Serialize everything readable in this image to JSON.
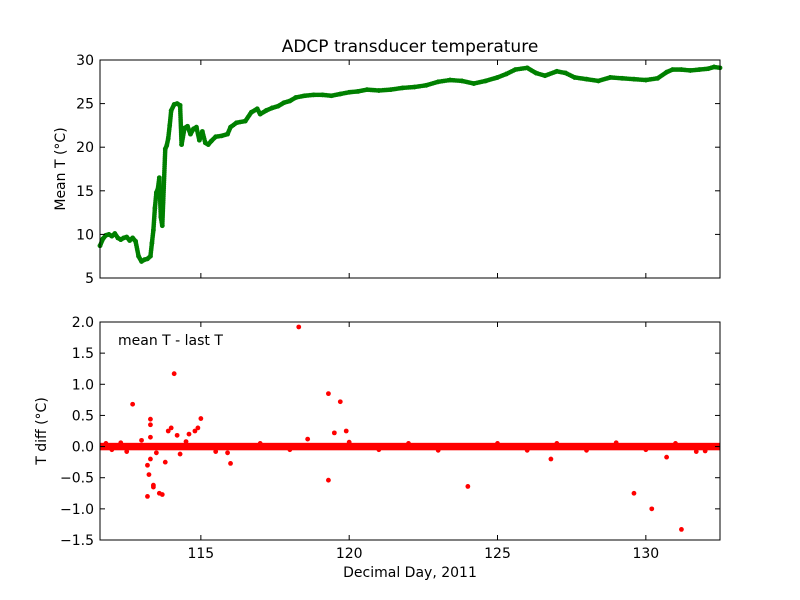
{
  "chart_data": [
    {
      "type": "scatter",
      "title": "ADCP transducer temperature",
      "xlabel": "",
      "ylabel": "Mean T (°C)",
      "xlim": [
        111.6,
        132.5
      ],
      "ylim": [
        5,
        30
      ],
      "yticks": [
        5,
        10,
        15,
        20,
        25,
        30
      ],
      "xticks": [
        115,
        120,
        125,
        130
      ],
      "show_xtick_labels": false,
      "grid": false,
      "series_color": "#008000",
      "series": [
        {
          "points": [
            [
              111.6,
              8.7
            ],
            [
              111.7,
              9.5
            ],
            [
              111.8,
              9.9
            ],
            [
              111.9,
              10.0
            ],
            [
              112.0,
              9.8
            ],
            [
              112.1,
              10.1
            ],
            [
              112.2,
              9.6
            ],
            [
              112.3,
              9.4
            ],
            [
              112.4,
              9.6
            ],
            [
              112.5,
              9.7
            ],
            [
              112.6,
              9.3
            ],
            [
              112.7,
              9.6
            ],
            [
              112.8,
              9.2
            ],
            [
              112.9,
              7.5
            ],
            [
              113.0,
              6.9
            ],
            [
              113.1,
              7.1
            ],
            [
              113.2,
              7.2
            ],
            [
              113.3,
              7.5
            ],
            [
              113.35,
              9.0
            ],
            [
              113.4,
              10.5
            ],
            [
              113.45,
              13.0
            ],
            [
              113.5,
              14.8
            ],
            [
              113.55,
              15.2
            ],
            [
              113.6,
              16.5
            ],
            [
              113.65,
              12.0
            ],
            [
              113.7,
              11.0
            ],
            [
              113.8,
              19.8
            ],
            [
              113.85,
              20.2
            ],
            [
              113.9,
              21.0
            ],
            [
              113.95,
              22.5
            ],
            [
              114.0,
              24.2
            ],
            [
              114.1,
              24.9
            ],
            [
              114.2,
              25.0
            ],
            [
              114.3,
              24.8
            ],
            [
              114.35,
              20.3
            ],
            [
              114.45,
              22.2
            ],
            [
              114.55,
              22.4
            ],
            [
              114.65,
              21.5
            ],
            [
              114.75,
              22.1
            ],
            [
              114.85,
              22.3
            ],
            [
              114.95,
              20.8
            ],
            [
              115.05,
              21.8
            ],
            [
              115.15,
              20.5
            ],
            [
              115.25,
              20.3
            ],
            [
              115.35,
              20.7
            ],
            [
              115.5,
              21.2
            ],
            [
              115.7,
              21.3
            ],
            [
              115.9,
              21.5
            ],
            [
              116.0,
              22.3
            ],
            [
              116.2,
              22.8
            ],
            [
              116.5,
              23.0
            ],
            [
              116.7,
              24.0
            ],
            [
              116.9,
              24.4
            ],
            [
              117.0,
              23.8
            ],
            [
              117.2,
              24.2
            ],
            [
              117.4,
              24.5
            ],
            [
              117.6,
              24.7
            ],
            [
              117.8,
              25.1
            ],
            [
              118.0,
              25.3
            ],
            [
              118.2,
              25.7
            ],
            [
              118.5,
              25.9
            ],
            [
              118.8,
              26.0
            ],
            [
              119.1,
              26.0
            ],
            [
              119.4,
              25.9
            ],
            [
              119.7,
              26.1
            ],
            [
              120.0,
              26.3
            ],
            [
              120.3,
              26.4
            ],
            [
              120.6,
              26.6
            ],
            [
              121.0,
              26.5
            ],
            [
              121.4,
              26.6
            ],
            [
              121.8,
              26.8
            ],
            [
              122.2,
              26.9
            ],
            [
              122.6,
              27.1
            ],
            [
              123.0,
              27.5
            ],
            [
              123.4,
              27.7
            ],
            [
              123.8,
              27.6
            ],
            [
              124.2,
              27.3
            ],
            [
              124.6,
              27.6
            ],
            [
              125.0,
              28.0
            ],
            [
              125.3,
              28.4
            ],
            [
              125.6,
              28.9
            ],
            [
              126.0,
              29.1
            ],
            [
              126.3,
              28.5
            ],
            [
              126.6,
              28.2
            ],
            [
              127.0,
              28.7
            ],
            [
              127.3,
              28.5
            ],
            [
              127.6,
              28.0
            ],
            [
              128.0,
              27.8
            ],
            [
              128.4,
              27.6
            ],
            [
              128.8,
              28.0
            ],
            [
              129.2,
              27.9
            ],
            [
              129.6,
              27.8
            ],
            [
              130.0,
              27.7
            ],
            [
              130.4,
              27.9
            ],
            [
              130.7,
              28.6
            ],
            [
              130.9,
              28.9
            ],
            [
              131.2,
              28.9
            ],
            [
              131.5,
              28.8
            ],
            [
              131.8,
              28.9
            ],
            [
              132.1,
              29.0
            ],
            [
              132.3,
              29.2
            ],
            [
              132.5,
              29.1
            ]
          ]
        }
      ]
    },
    {
      "type": "scatter",
      "title": "",
      "annotation": "mean T - last T",
      "xlabel": "Decimal Day, 2011",
      "ylabel": "T diff (°C)",
      "xlim": [
        111.6,
        132.5
      ],
      "ylim": [
        -1.5,
        2.0
      ],
      "yticks": [
        -1.5,
        -1.0,
        -0.5,
        0.0,
        0.5,
        1.0,
        1.5,
        2.0
      ],
      "ytick_labels": [
        "−1.5",
        "−1.0",
        "−0.5",
        "0.0",
        "0.5",
        "1.0",
        "1.5",
        "2.0"
      ],
      "xticks": [
        115,
        120,
        125,
        130
      ],
      "xtick_labels": [
        "115",
        "120",
        "125",
        "130"
      ],
      "grid": false,
      "series_color": "#ff0000",
      "band": {
        "center": 0.0,
        "half_width": 0.06
      },
      "series": [
        {
          "points": [
            [
              112.7,
              0.68
            ],
            [
              113.2,
              -0.8
            ],
            [
              113.3,
              0.35
            ],
            [
              113.3,
              0.44
            ],
            [
              113.3,
              0.15
            ],
            [
              113.4,
              -0.62
            ],
            [
              113.4,
              -0.65
            ],
            [
              113.2,
              -0.3
            ],
            [
              113.25,
              -0.45
            ],
            [
              113.3,
              -0.2
            ],
            [
              113.6,
              -0.75
            ],
            [
              113.7,
              -0.77
            ],
            [
              113.8,
              -0.25
            ],
            [
              113.9,
              0.25
            ],
            [
              114.0,
              0.3
            ],
            [
              114.1,
              1.17
            ],
            [
              114.2,
              0.18
            ],
            [
              114.3,
              -0.12
            ],
            [
              114.6,
              0.2
            ],
            [
              114.8,
              0.25
            ],
            [
              114.9,
              0.3
            ],
            [
              115.0,
              0.45
            ],
            [
              116.0,
              -0.27
            ],
            [
              115.9,
              -0.1
            ],
            [
              118.3,
              1.92
            ],
            [
              118.6,
              0.12
            ],
            [
              119.3,
              0.85
            ],
            [
              119.3,
              -0.54
            ],
            [
              119.5,
              0.22
            ],
            [
              119.7,
              0.72
            ],
            [
              119.9,
              0.25
            ],
            [
              124.0,
              -0.64
            ],
            [
              126.8,
              -0.2
            ],
            [
              129.6,
              -0.75
            ],
            [
              130.2,
              -1.0
            ],
            [
              130.7,
              -0.17
            ],
            [
              131.2,
              -1.33
            ],
            [
              131.7,
              -0.08
            ],
            [
              111.8,
              0.05
            ],
            [
              112.0,
              -0.05
            ],
            [
              112.3,
              0.06
            ],
            [
              112.5,
              -0.08
            ],
            [
              113.0,
              0.1
            ],
            [
              113.5,
              -0.1
            ],
            [
              114.5,
              0.08
            ],
            [
              115.5,
              -0.08
            ],
            [
              117.0,
              0.05
            ],
            [
              118.0,
              -0.05
            ],
            [
              120.0,
              0.07
            ],
            [
              121.0,
              -0.05
            ],
            [
              122.0,
              0.05
            ],
            [
              123.0,
              -0.06
            ],
            [
              125.0,
              0.05
            ],
            [
              126.0,
              -0.06
            ],
            [
              127.0,
              0.05
            ],
            [
              128.0,
              -0.06
            ],
            [
              129.0,
              0.06
            ],
            [
              130.0,
              -0.05
            ],
            [
              131.0,
              0.05
            ],
            [
              132.0,
              -0.07
            ]
          ]
        }
      ]
    }
  ]
}
